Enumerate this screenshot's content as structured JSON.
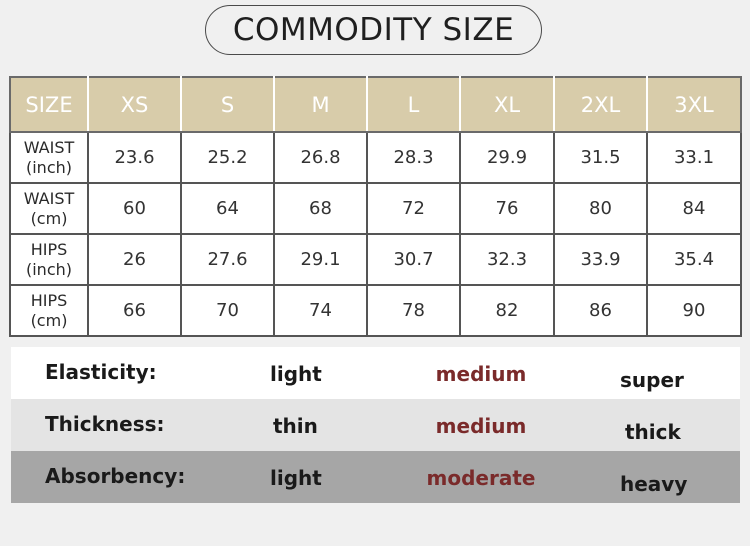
{
  "title": "COMMODITY SIZE",
  "size_table": {
    "header": [
      "SIZE",
      "XS",
      "S",
      "M",
      "L",
      "XL",
      "2XL",
      "3XL"
    ],
    "rows": [
      {
        "label_line1": "WAIST",
        "label_line2": "(inch)",
        "values": [
          "23.6",
          "25.2",
          "26.8",
          "28.3",
          "29.9",
          "31.5",
          "33.1"
        ]
      },
      {
        "label_line1": "WAIST",
        "label_line2": "(cm)",
        "values": [
          "60",
          "64",
          "68",
          "72",
          "76",
          "80",
          "84"
        ]
      },
      {
        "label_line1": "HIPS",
        "label_line2": "(inch)",
        "values": [
          "26",
          "27.6",
          "29.1",
          "30.7",
          "32.3",
          "33.9",
          "35.4"
        ]
      },
      {
        "label_line1": "HIPS",
        "label_line2": "(cm)",
        "values": [
          "66",
          "70",
          "74",
          "78",
          "82",
          "86",
          "90"
        ]
      }
    ]
  },
  "properties": [
    {
      "label": "Elasticity:",
      "options": [
        "light",
        "medium",
        "super"
      ]
    },
    {
      "label": "Thickness:",
      "options": [
        "thin",
        "medium",
        "thick"
      ]
    },
    {
      "label": "Absorbency:",
      "options": [
        "light",
        "moderate",
        "heavy"
      ]
    }
  ],
  "colors": {
    "header_bg": "#d8ccaa",
    "highlight_text": "#7a2a2a",
    "row_backgrounds": [
      "#ffffff",
      "#e4e4e4",
      "#a6a6a6"
    ]
  }
}
